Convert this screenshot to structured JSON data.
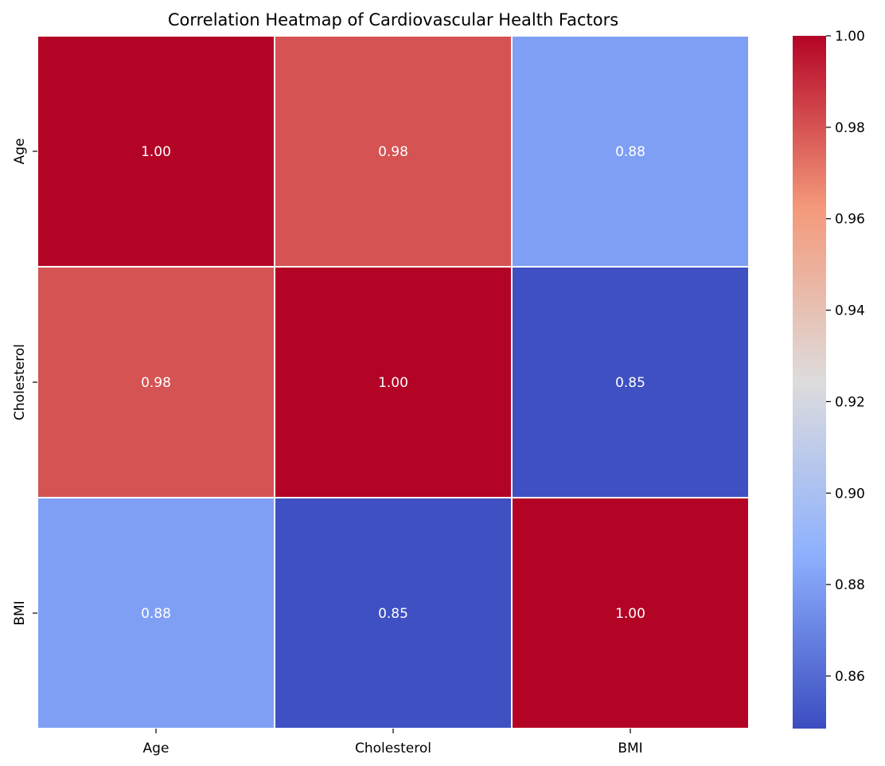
{
  "chart_data": {
    "type": "heatmap",
    "title": "Correlation Heatmap of Cardiovascular Health Factors",
    "x_categories": [
      "Age",
      "Cholesterol",
      "BMI"
    ],
    "y_categories": [
      "Age",
      "Cholesterol",
      "BMI"
    ],
    "matrix": [
      [
        1.0,
        0.98,
        0.88
      ],
      [
        0.98,
        1.0,
        0.85
      ],
      [
        0.88,
        0.85,
        1.0
      ]
    ],
    "cell_labels": [
      [
        "1.00",
        "0.98",
        "0.88"
      ],
      [
        "0.98",
        "1.00",
        "0.85"
      ],
      [
        "0.88",
        "0.85",
        "1.00"
      ]
    ],
    "colormap": "coolwarm",
    "colorbar_range": [
      0.8485,
      1.0
    ],
    "colorbar_ticks": [
      0.86,
      0.88,
      0.9,
      0.92,
      0.94,
      0.96,
      0.98,
      1.0
    ],
    "colorbar_tick_labels": [
      "0.86",
      "0.88",
      "0.90",
      "0.92",
      "0.94",
      "0.96",
      "0.98",
      "1.00"
    ],
    "colormap_stops": [
      {
        "t": 0.0,
        "color": "#3b4cc0"
      },
      {
        "t": 0.25,
        "color": "#8db0fe"
      },
      {
        "t": 0.5,
        "color": "#dddcdc"
      },
      {
        "t": 0.75,
        "color": "#f49a7b"
      },
      {
        "t": 1.0,
        "color": "#b40426"
      }
    ],
    "cell_border_color": "#ffffff",
    "legend_placement": "right"
  }
}
